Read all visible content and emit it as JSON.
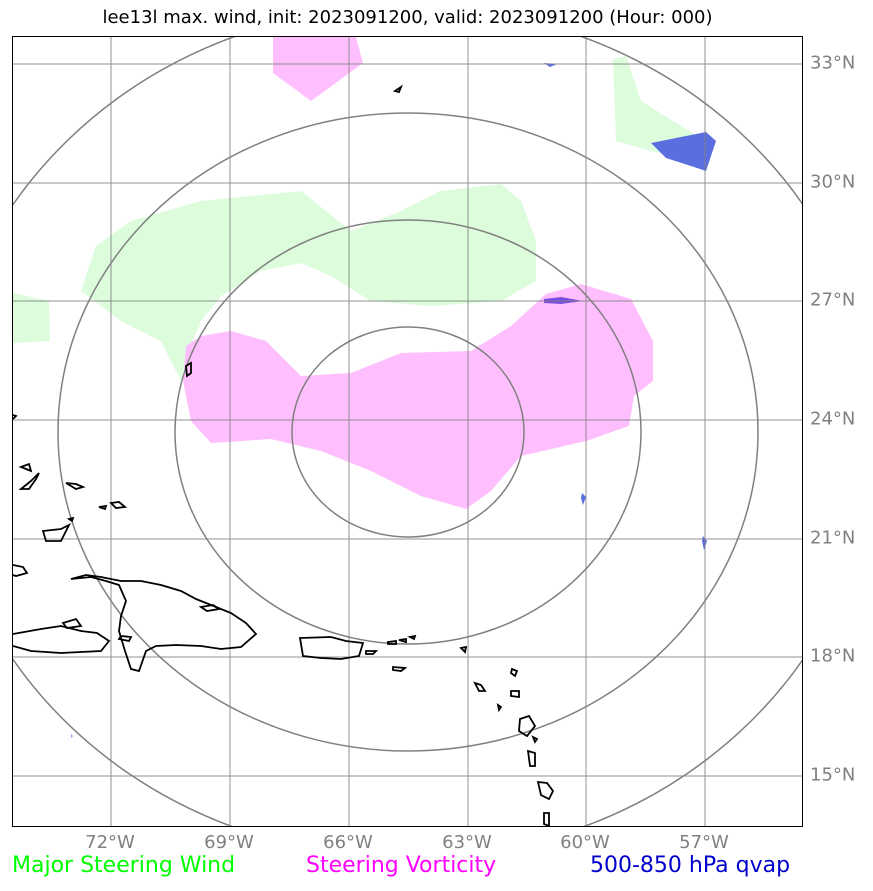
{
  "title": "lee13l max. wind, init: 2023091200, valid: 2023091200 (Hour: 000)",
  "lat_labels": [
    "33°N",
    "30°N",
    "27°N",
    "24°N",
    "21°N",
    "18°N",
    "15°N"
  ],
  "lon_labels": [
    "72°W",
    "69°W",
    "66°W",
    "63°W",
    "60°W",
    "57°W"
  ],
  "legend": [
    {
      "label": "Major Steering Wind",
      "color": "#00ff00"
    },
    {
      "label": "Steering Vorticity",
      "color": "#ff00ff"
    },
    {
      "label": "500-850 hPa qvap",
      "color": "#0000cd"
    }
  ],
  "colors": {
    "gridline": "#808080",
    "range_ring": "#808080",
    "coastline": "#000000",
    "steering_wind_fill": "#dcfcdc",
    "vorticity_fill": "#ffbfff",
    "qvap_fill": "#5a6ee0"
  },
  "map": {
    "projection": "centered on storm",
    "range_rings": 4,
    "features": [
      "coastlines",
      "lat-lon gridlines",
      "range-rings"
    ]
  }
}
